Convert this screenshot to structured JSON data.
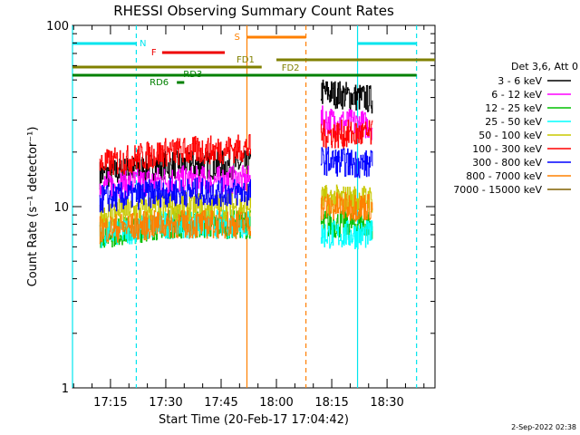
{
  "chart_data": {
    "type": "line",
    "title": "RHESSI Observing Summary Count Rates",
    "xlabel": "Start Time (20-Feb-17 17:04:42)",
    "ylabel": "Count Rate (s⁻¹ detector⁻¹)",
    "yscale": "log",
    "ylim": [
      1,
      100
    ],
    "y_ticks": [
      "1",
      "10",
      "100"
    ],
    "xlim": [
      "17:04:42",
      "18:43:00"
    ],
    "x_ticks": [
      "17:15",
      "17:30",
      "17:45",
      "18:00",
      "18:15",
      "18:30"
    ],
    "legend_title": "Det 3,6, Att 0",
    "legend_position": "right",
    "data_gaps": [
      [
        "17:54:00",
        "18:12:00"
      ]
    ],
    "series": [
      {
        "name": "3 - 6 keV",
        "color": "#000000",
        "x": [
          "17:12",
          "17:30",
          "17:53",
          "18:12",
          "18:26"
        ],
        "y": [
          15,
          17,
          17,
          43,
          39
        ]
      },
      {
        "name": "6 - 12 keV",
        "color": "#ff00ff",
        "x": [
          "17:12",
          "17:30",
          "17:53",
          "18:12",
          "18:26"
        ],
        "y": [
          13,
          14,
          14,
          30,
          28
        ]
      },
      {
        "name": "12 - 25 keV",
        "color": "#00c000",
        "x": [
          "17:12",
          "17:30",
          "17:53",
          "18:12",
          "18:26"
        ],
        "y": [
          7,
          8,
          8,
          8,
          8
        ]
      },
      {
        "name": "25 - 50 keV",
        "color": "#00ffff",
        "x": [
          "17:12",
          "17:30",
          "17:53",
          "18:12",
          "18:26"
        ],
        "y": [
          7,
          8,
          8,
          7,
          7
        ]
      },
      {
        "name": "50 - 100 keV",
        "color": "#c8c800",
        "x": [
          "17:12",
          "17:30",
          "17:53",
          "18:12",
          "18:26"
        ],
        "y": [
          9,
          10,
          10,
          11,
          11
        ]
      },
      {
        "name": "100 - 300 keV",
        "color": "#ff0000",
        "x": [
          "17:12",
          "17:30",
          "17:53",
          "18:12",
          "18:26"
        ],
        "y": [
          17,
          20,
          21,
          25,
          25
        ]
      },
      {
        "name": "300 - 800 keV",
        "color": "#0000ff",
        "x": [
          "17:12",
          "17:30",
          "17:53",
          "18:12",
          "18:26"
        ],
        "y": [
          11,
          12,
          12,
          18,
          17
        ]
      },
      {
        "name": "800 - 7000 keV",
        "color": "#ff8000",
        "x": [
          "17:12",
          "17:30",
          "17:53",
          "18:12",
          "18:26"
        ],
        "y": [
          7.5,
          8,
          8,
          10,
          10
        ]
      },
      {
        "name": "7000 - 15000 keV",
        "color": "#806000",
        "x": [],
        "y": []
      }
    ],
    "flag_bars": [
      {
        "label": "N",
        "color": "#00e5ee",
        "segments": [
          [
            "17:04:42",
            "17:22"
          ],
          [
            "18:22",
            "18:38"
          ]
        ]
      },
      {
        "label": "F",
        "color": "#ee0000",
        "segments": [
          [
            "17:29",
            "17:46"
          ]
        ]
      },
      {
        "label": "S",
        "color": "#ff8000",
        "segments": [
          [
            "17:52",
            "18:08"
          ]
        ]
      },
      {
        "label": "FD1",
        "color": "#808000",
        "segments": [
          [
            "18:00",
            "18:43"
          ]
        ]
      },
      {
        "label": "FD2",
        "color": "#808000",
        "segments": [
          [
            "17:04:42",
            "17:56"
          ]
        ]
      },
      {
        "label": "RD3",
        "color": "#008000",
        "segments": [
          [
            "17:04:42",
            "18:38"
          ]
        ]
      },
      {
        "label": "RD6",
        "color": "#008000",
        "segments": [
          [
            "17:33",
            "17:35"
          ]
        ]
      }
    ],
    "vertical_markers": [
      {
        "time": "17:04:42",
        "color": "#00e5ee",
        "style": "solid"
      },
      {
        "time": "17:22",
        "color": "#00e5ee",
        "style": "dashed"
      },
      {
        "time": "17:52",
        "color": "#ff8000",
        "style": "solid"
      },
      {
        "time": "18:08",
        "color": "#ff8000",
        "style": "dashed"
      },
      {
        "time": "18:22",
        "color": "#00e5ee",
        "style": "solid"
      },
      {
        "time": "18:38",
        "color": "#00e5ee",
        "style": "dashed"
      }
    ]
  },
  "timestamp": "2-Sep-2022 02:38"
}
